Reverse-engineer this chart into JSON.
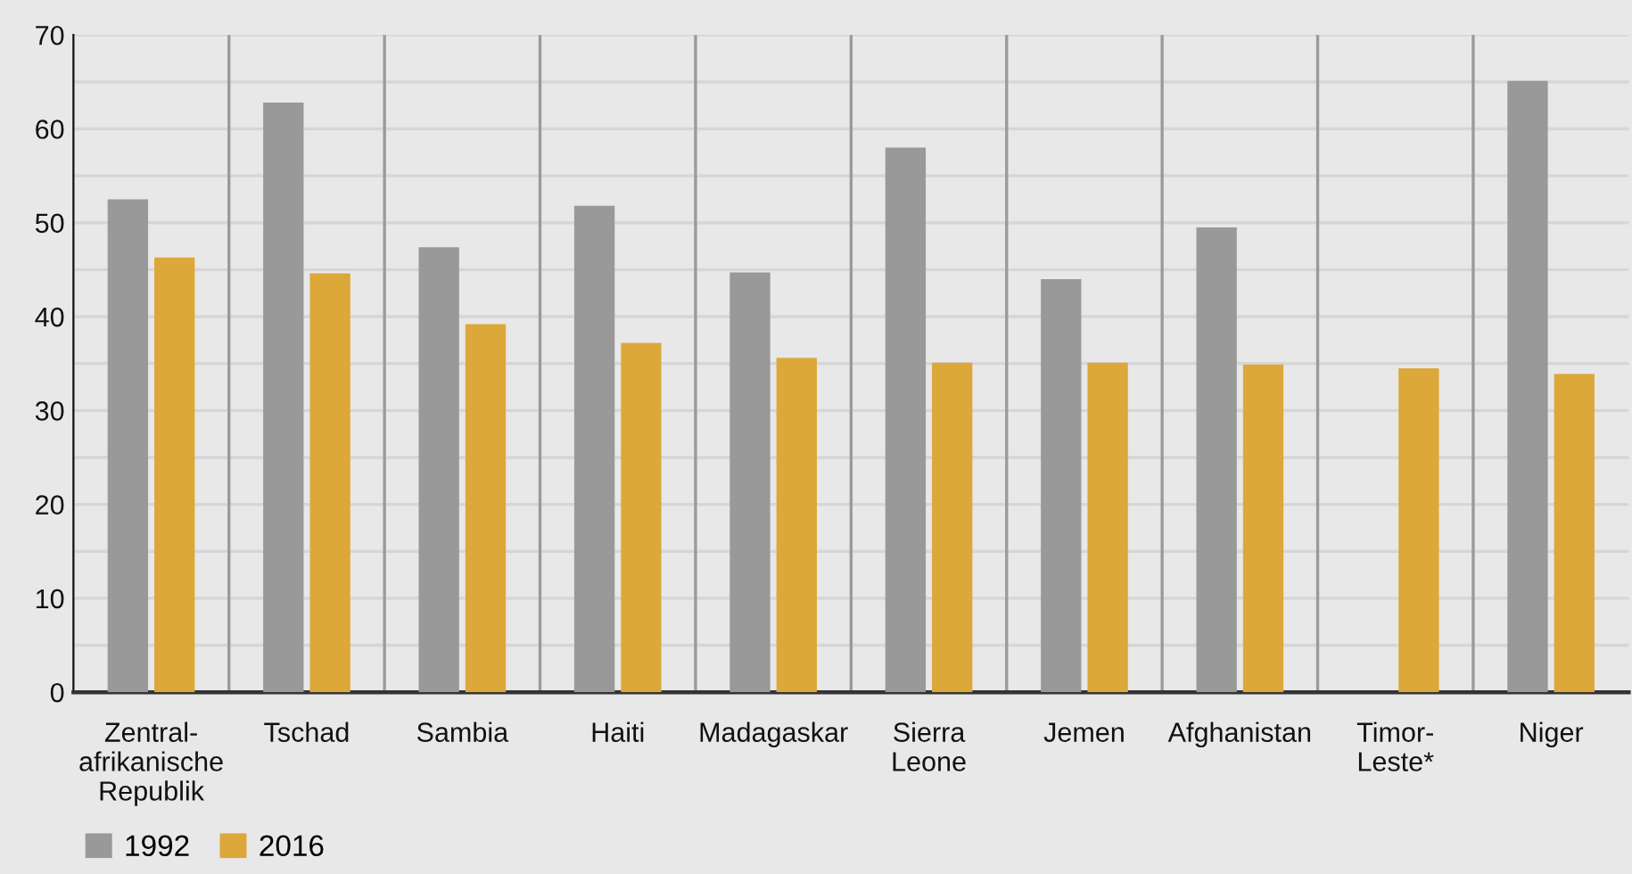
{
  "chart_data": {
    "type": "bar",
    "categories": [
      "Zentral-\nafrikanische\nRepublik",
      "Tschad",
      "Sambia",
      "Haiti",
      "Madagaskar",
      "Sierra\nLeone",
      "Jemen",
      "Afghanistan",
      "Timor-\nLeste*",
      "Niger"
    ],
    "series": [
      {
        "name": "1992",
        "color": "#999999",
        "values": [
          52.5,
          62.8,
          47.4,
          51.8,
          44.7,
          58.0,
          44.0,
          49.5,
          null,
          65.1
        ]
      },
      {
        "name": "2016",
        "color": "#dca83a",
        "values": [
          46.3,
          44.6,
          39.2,
          37.2,
          35.6,
          35.1,
          35.1,
          34.9,
          34.5,
          33.9
        ]
      }
    ],
    "ylim": [
      0,
      70
    ],
    "yticks": [
      0,
      {
        "value": 5,
        "label": null
      },
      10,
      {
        "value": 15,
        "label": null
      },
      20,
      {
        "value": 25,
        "label": null
      },
      30,
      {
        "value": 35,
        "label": null
      },
      40,
      {
        "value": 45,
        "label": null
      },
      50,
      {
        "value": 55,
        "label": null
      },
      60,
      {
        "value": 65,
        "label": null
      },
      70
    ],
    "grid": true,
    "legend": "bottom left"
  }
}
